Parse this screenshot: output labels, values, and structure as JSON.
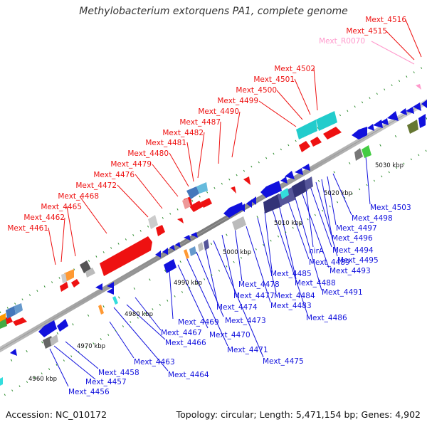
{
  "title": "Methylobacterium extorquens PA1, complete genome",
  "footer": {
    "accession": "Accession: NC_010172",
    "summary": "Topology: circular; Length: 5,471,154 bp; Genes: 4,902"
  },
  "axis": {
    "ticks": [
      "4960 kbp",
      "4970 kbp",
      "4980 kbp",
      "4990 kbp",
      "5000 kbp",
      "5010 kbp",
      "5020 kbp",
      "5030 kbp"
    ]
  },
  "genes_top": [
    "Mext_4461",
    "Mext_4462",
    "Mext_4465",
    "Mext_4468",
    "Mext_4472",
    "Mext_4476",
    "Mext_4479",
    "Mext_4480",
    "Mext_4481",
    "Mext_4482",
    "Mext_4487",
    "Mext_4490",
    "Mext_4499",
    "Mext_4500",
    "Mext_4501",
    "Mext_4502",
    "Mext_R0070",
    "Mext_4515",
    "Mext_4516"
  ],
  "genes_bottom": [
    "Mext_4456",
    "Mext_4457",
    "Mext_4458",
    "Mext_4463",
    "Mext_4464",
    "Mext_4466",
    "Mext_4467",
    "Mext_4469",
    "Mext_4470",
    "Mext_4471",
    "Mext_4473",
    "Mext_4474",
    "Mext_4475",
    "Mext_4477",
    "Mext_4478",
    "Mext_4483",
    "Mext_4484",
    "Mext_4485",
    "Mext_4486",
    "Mext_4488",
    "Mext_4489",
    "Mext_4491",
    "Mext_4493",
    "nirA",
    "Mext_4494",
    "Mext_4495",
    "Mext_4496",
    "Mext_4497",
    "Mext_4498",
    "Mext_4503"
  ],
  "colors": {
    "forward": "#ee1111",
    "reverse": "#1111dd",
    "rna": "#ff99cc",
    "backbone": "#8c8c8c",
    "grid": "#2a8a2a"
  }
}
